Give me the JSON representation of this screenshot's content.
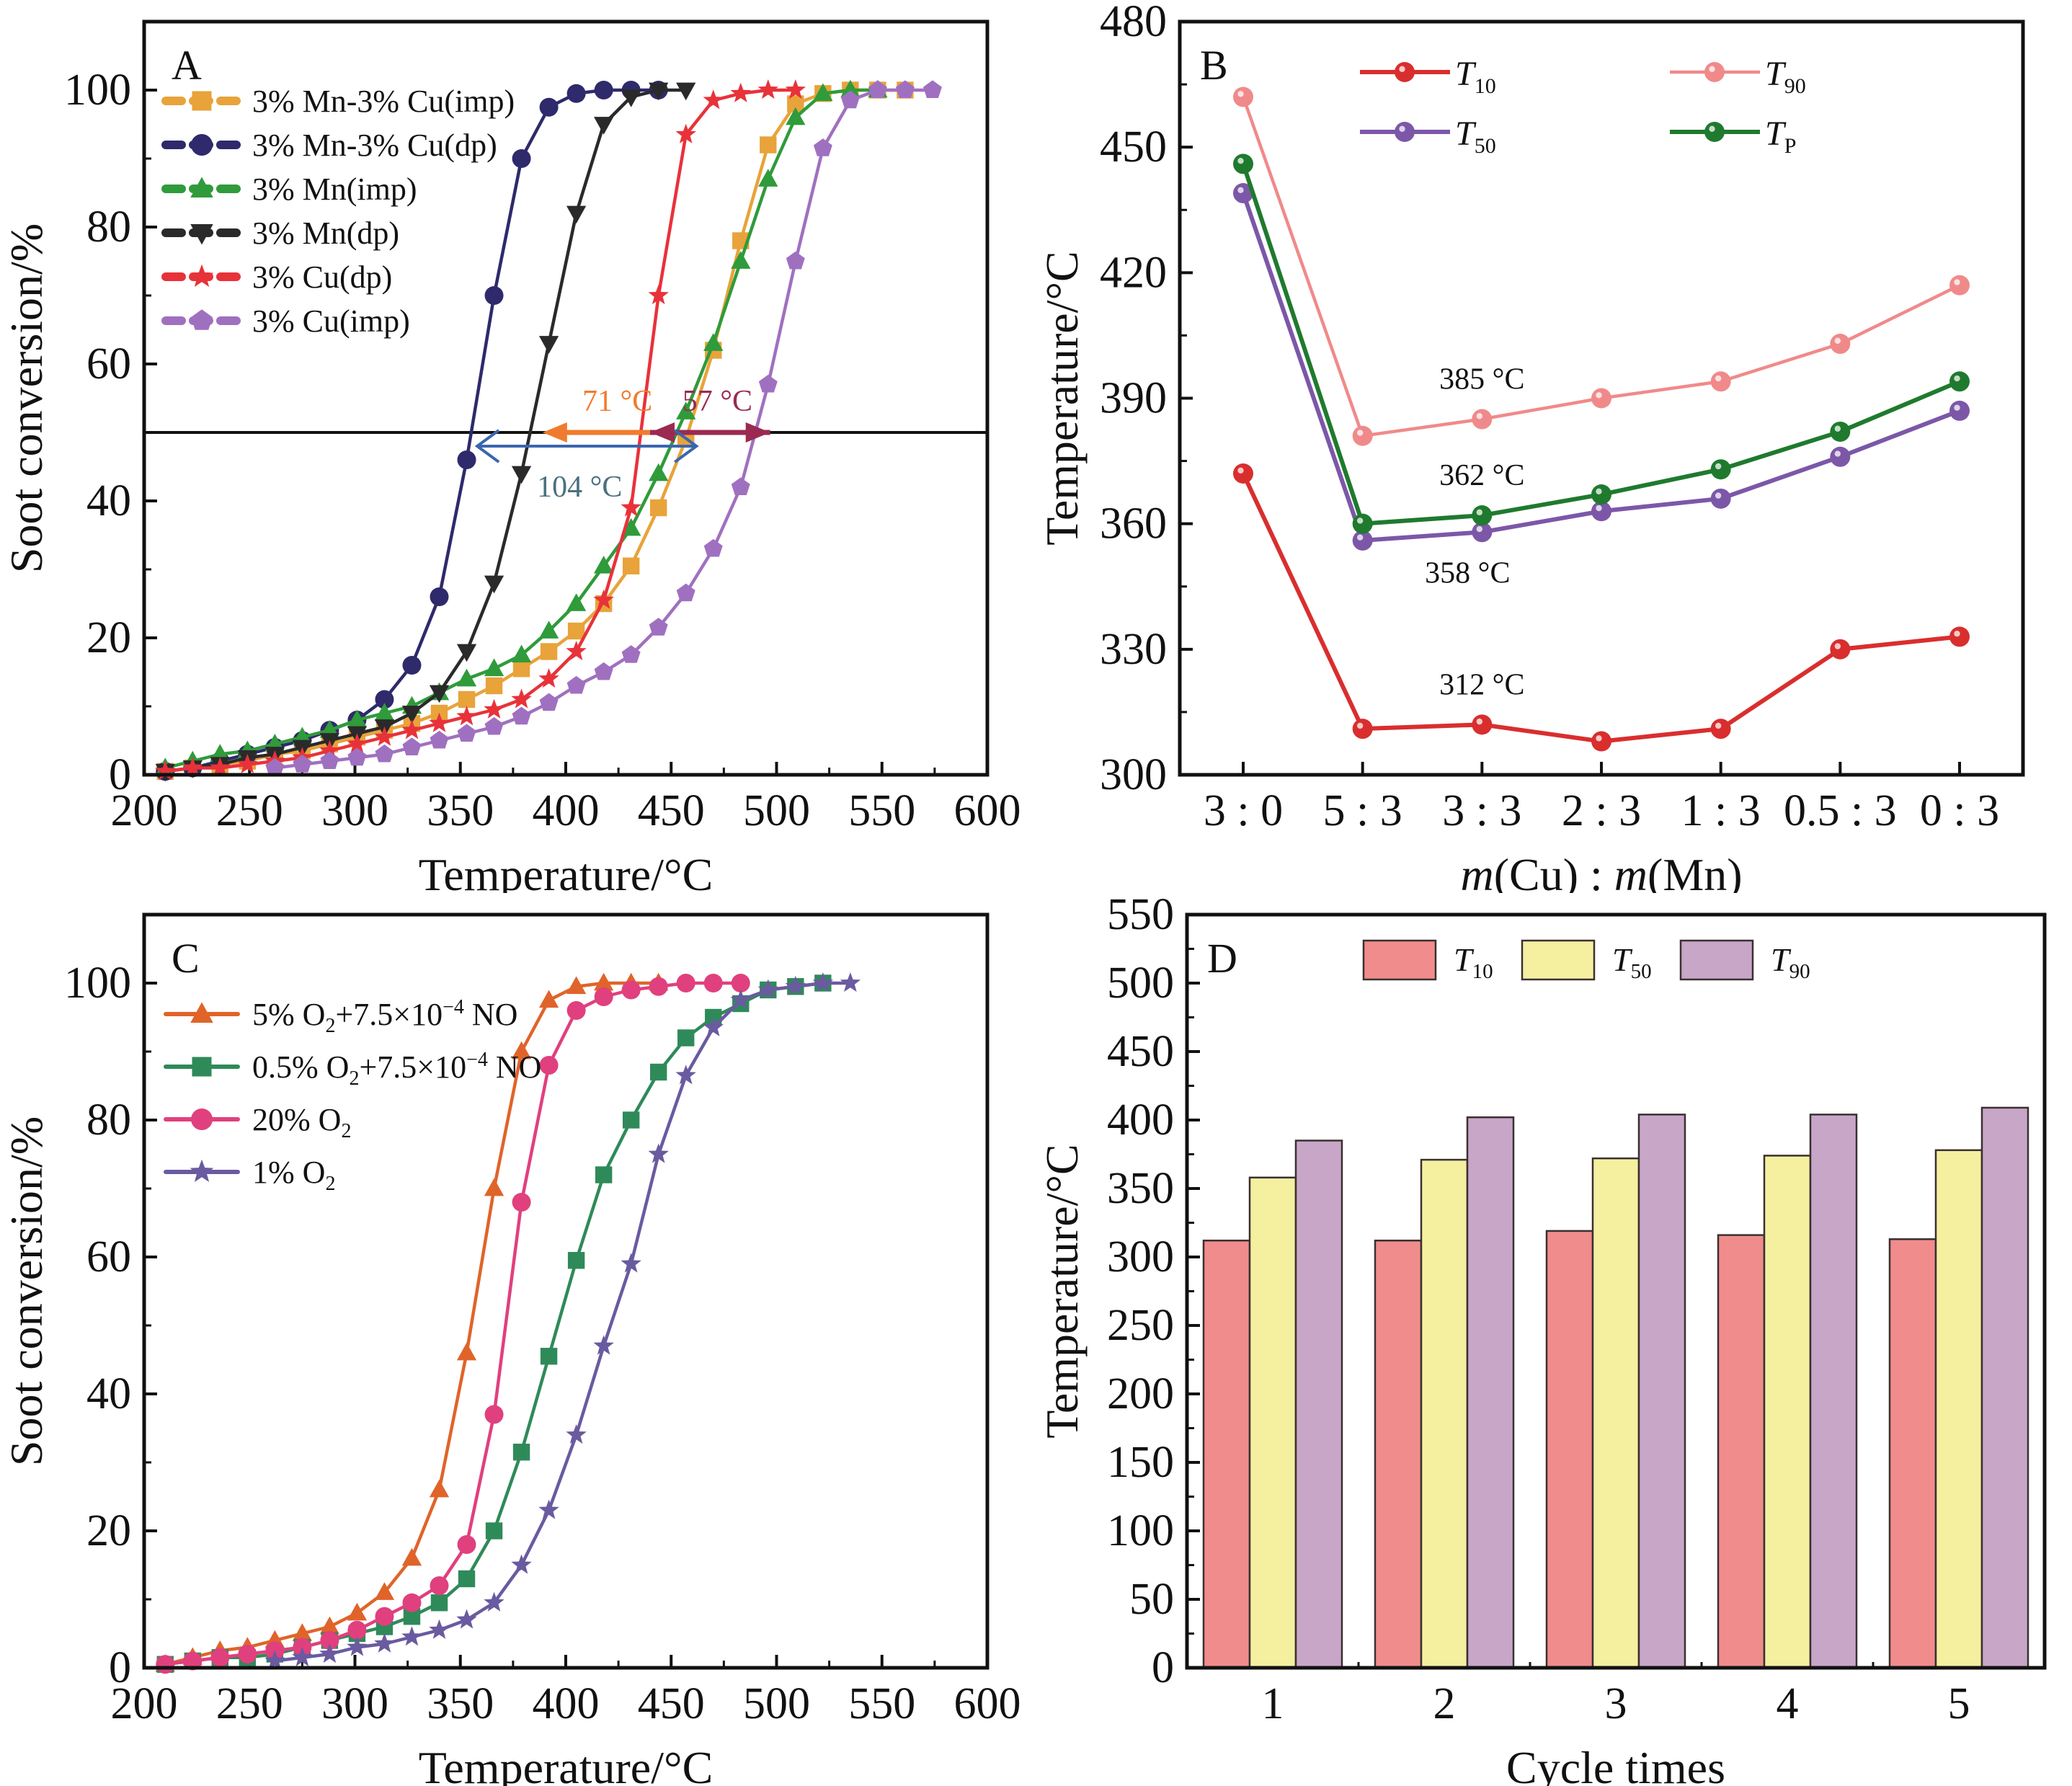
{
  "chart_data": [
    {
      "id": "A",
      "type": "line",
      "panel_label": "A",
      "xlabel": "Temperature/°C",
      "ylabel": "Soot conversion/%",
      "xlim": [
        200,
        600
      ],
      "ylim": [
        0,
        110
      ],
      "xticks": [
        200,
        250,
        300,
        350,
        400,
        450,
        500,
        550,
        600
      ],
      "yticks": [
        0,
        20,
        40,
        60,
        80,
        100
      ],
      "grid": false,
      "legend_position": "top-left",
      "reference_line_y": 50,
      "annotations": [
        {
          "text": "71 °C",
          "color": "#f07b2e",
          "from_x": 460,
          "to_x": 389,
          "y": 50
        },
        {
          "text": "57 °C",
          "color": "#9a2a52",
          "from_x": 440,
          "to_x": 497,
          "y": 50
        },
        {
          "text": "104 °C",
          "color": "#4a7080",
          "from_x": 462,
          "to_x": 358,
          "y": 48
        }
      ],
      "series": [
        {
          "name": "3% Mn-3% Cu(imp)",
          "color": "#e8a33a",
          "marker": "square",
          "x": [
            210,
            223,
            236,
            249,
            262,
            275,
            288,
            301,
            314,
            327,
            340,
            353,
            366,
            379,
            392,
            405,
            418,
            431,
            444,
            457,
            470,
            483,
            496,
            509,
            522,
            535,
            548,
            561
          ],
          "y": [
            0.5,
            1,
            1.5,
            2,
            3,
            3.5,
            4.5,
            5.5,
            6.5,
            7.5,
            9,
            11,
            13,
            15.5,
            18,
            21,
            25,
            30.5,
            39,
            49,
            62,
            78,
            92,
            98,
            99.5,
            100,
            100,
            100
          ]
        },
        {
          "name": "3% Mn-3% Cu(dp)",
          "color": "#2e2a6b",
          "marker": "circle",
          "x": [
            210,
            223,
            236,
            249,
            262,
            275,
            288,
            301,
            314,
            327,
            340,
            353,
            366,
            379,
            392,
            405,
            418,
            431,
            444
          ],
          "y": [
            0.5,
            1,
            2,
            3,
            4,
            5,
            6.5,
            8,
            11,
            16,
            26,
            46,
            70,
            90,
            97.5,
            99.5,
            100,
            100,
            100
          ]
        },
        {
          "name": "3% Mn(imp)",
          "color": "#2f9b3a",
          "marker": "triangle-up",
          "x": [
            210,
            223,
            236,
            249,
            262,
            275,
            288,
            301,
            314,
            327,
            340,
            353,
            366,
            379,
            392,
            405,
            418,
            431,
            444,
            457,
            470,
            483,
            496,
            509,
            522,
            535,
            548
          ],
          "y": [
            1,
            2,
            3,
            3.5,
            4.5,
            5.5,
            6.5,
            8,
            9,
            10,
            12,
            14,
            15.5,
            17.5,
            21,
            25,
            30.5,
            36,
            44,
            53,
            63,
            75,
            87,
            96,
            99.5,
            100,
            100
          ]
        },
        {
          "name": "3% Mn(dp)",
          "color": "#2a2a2a",
          "marker": "triangle-down",
          "x": [
            210,
            223,
            236,
            249,
            262,
            275,
            288,
            301,
            314,
            327,
            340,
            353,
            366,
            379,
            392,
            405,
            418,
            431,
            444,
            457
          ],
          "y": [
            0.5,
            1,
            1.5,
            2.5,
            3,
            4,
            5,
            6,
            7,
            9,
            12,
            18,
            28,
            44,
            63,
            82,
            95,
            99,
            100,
            100
          ]
        },
        {
          "name": "3% Cu(dp)",
          "color": "#e8323a",
          "marker": "star",
          "x": [
            210,
            223,
            236,
            249,
            262,
            275,
            288,
            301,
            314,
            327,
            340,
            353,
            366,
            379,
            392,
            405,
            418,
            431,
            444,
            457,
            470,
            483,
            496,
            509
          ],
          "y": [
            0.5,
            1,
            1,
            1.5,
            2,
            2.5,
            3.5,
            4.5,
            5.5,
            6.5,
            7.5,
            8.5,
            9.5,
            11,
            14,
            18,
            25.5,
            39,
            70,
            93.5,
            98.5,
            99.5,
            100,
            100
          ]
        },
        {
          "name": "3% Cu(imp)",
          "color": "#a070c0",
          "marker": "pentagon",
          "x": [
            262,
            275,
            288,
            301,
            314,
            327,
            340,
            353,
            366,
            379,
            392,
            405,
            418,
            431,
            444,
            457,
            470,
            483,
            496,
            509,
            522,
            535,
            548,
            561,
            574
          ],
          "y": [
            1,
            1.5,
            2,
            2.5,
            3,
            4,
            5,
            6,
            7,
            8.5,
            10.5,
            13,
            15,
            17.5,
            21.5,
            26.5,
            33,
            42,
            57,
            75,
            91.5,
            98.5,
            100,
            100,
            100
          ]
        }
      ]
    },
    {
      "id": "B",
      "type": "line",
      "panel_label": "B",
      "xlabel": "m(Cu) : m(Mn)",
      "xlabel_parts": {
        "m": "m",
        "cu": "(Cu)",
        "sep": " : ",
        "mn": "(Mn)"
      },
      "ylabel": "Temperature/°C",
      "categories": [
        "3 : 0",
        "5 : 3",
        "3 : 3",
        "2 : 3",
        "1 : 3",
        "0.5 : 3",
        "0 : 3"
      ],
      "ylim": [
        300,
        480
      ],
      "yticks": [
        300,
        330,
        360,
        390,
        420,
        450,
        480
      ],
      "grid": false,
      "legend_position": "top-center",
      "annotations": [
        {
          "text": "385 °C",
          "category_index": 2,
          "value": 385
        },
        {
          "text": "362 °C",
          "category_index": 2,
          "value": 362
        },
        {
          "text": "358 °C",
          "category_index": 2,
          "value": 358
        },
        {
          "text": "312 °C",
          "category_index": 2,
          "value": 312
        }
      ],
      "series": [
        {
          "name": "T10",
          "sym": "T",
          "sub": "10",
          "color": "#d92e2e",
          "values": [
            372,
            311,
            312,
            308,
            311,
            330,
            333
          ]
        },
        {
          "name": "T90",
          "sym": "T",
          "sub": "90",
          "color": "#f08a8a",
          "values": [
            462,
            381,
            385,
            390,
            394,
            403,
            417
          ]
        },
        {
          "name": "T50",
          "sym": "T",
          "sub": "50",
          "color": "#7c57a8",
          "values": [
            439,
            356,
            358,
            363,
            366,
            376,
            387
          ]
        },
        {
          "name": "TP",
          "sym": "T",
          "sub": "P",
          "color": "#1f7a2e",
          "values": [
            446,
            360,
            362,
            367,
            373,
            382,
            394
          ]
        }
      ]
    },
    {
      "id": "C",
      "type": "line",
      "panel_label": "C",
      "xlabel": "Temperature/°C",
      "ylabel": "Soot conversion/%",
      "xlim": [
        200,
        600
      ],
      "ylim": [
        0,
        110
      ],
      "xticks": [
        200,
        250,
        300,
        350,
        400,
        450,
        500,
        550,
        600
      ],
      "yticks": [
        0,
        20,
        40,
        60,
        80,
        100
      ],
      "grid": false,
      "legend_position": "top-left",
      "series": [
        {
          "name": "5% O2+7.5×10−4 NO",
          "label_parts": [
            "5% O",
            "2",
            "+7.5×10",
            "−4",
            " NO"
          ],
          "color": "#e0642a",
          "marker": "triangle-up",
          "x": [
            210,
            223,
            236,
            249,
            262,
            275,
            288,
            301,
            314,
            327,
            340,
            353,
            366,
            379,
            392,
            405,
            418,
            431,
            444
          ],
          "y": [
            0.5,
            1.5,
            2.5,
            3,
            4,
            5,
            6,
            8,
            11,
            16,
            26,
            46,
            70,
            90,
            97.5,
            99.5,
            100,
            100,
            100
          ]
        },
        {
          "name": "0.5% O2+7.5×10−4 NO",
          "label_parts": [
            "0.5% O",
            "2",
            "+7.5×10",
            "−4",
            " NO"
          ],
          "color": "#2f8a5a",
          "marker": "square",
          "x": [
            210,
            223,
            236,
            249,
            262,
            275,
            288,
            301,
            314,
            327,
            340,
            353,
            366,
            379,
            392,
            405,
            418,
            431,
            444,
            457,
            470,
            483,
            496,
            509,
            522
          ],
          "y": [
            0.5,
            1,
            1.5,
            1.5,
            2,
            3,
            4,
            5,
            6,
            7.5,
            9.5,
            13,
            20,
            31.5,
            45.5,
            59.5,
            72,
            80,
            87,
            92,
            95,
            97,
            99,
            99.5,
            100
          ]
        },
        {
          "name": "20% O2",
          "label_parts": [
            "20% O",
            "2",
            "",
            "",
            ""
          ],
          "color": "#e0407e",
          "marker": "circle",
          "x": [
            210,
            223,
            236,
            249,
            262,
            275,
            288,
            301,
            314,
            327,
            340,
            353,
            366,
            379,
            392,
            405,
            418,
            431,
            444,
            457,
            470,
            483
          ],
          "y": [
            0.5,
            1,
            1.5,
            2,
            2.5,
            3,
            4,
            5.5,
            7.5,
            9.5,
            12,
            18,
            37,
            68,
            88,
            96,
            98,
            99,
            99.5,
            100,
            100,
            100
          ]
        },
        {
          "name": "1% O2",
          "label_parts": [
            "1% O",
            "2",
            "",
            "",
            ""
          ],
          "color": "#6a5aa0",
          "marker": "star",
          "x": [
            262,
            275,
            288,
            301,
            314,
            327,
            340,
            353,
            366,
            379,
            392,
            405,
            418,
            431,
            444,
            457,
            470,
            483,
            496,
            509,
            522,
            535
          ],
          "y": [
            1,
            1.5,
            2,
            3,
            3.5,
            4.5,
            5.5,
            7,
            9.5,
            15,
            23,
            34,
            47,
            59,
            75,
            86.5,
            93.5,
            97.5,
            99,
            99.5,
            100,
            100
          ]
        }
      ]
    },
    {
      "id": "D",
      "type": "bar",
      "panel_label": "D",
      "xlabel": "Cycle times",
      "ylabel": "Temperature/°C",
      "categories": [
        "1",
        "2",
        "3",
        "4",
        "5"
      ],
      "ylim": [
        0,
        550
      ],
      "yticks": [
        0,
        50,
        100,
        150,
        200,
        250,
        300,
        350,
        400,
        450,
        500,
        550
      ],
      "grid": false,
      "legend_position": "top-center",
      "series": [
        {
          "name": "T10",
          "sym": "T",
          "sub": "10",
          "color": "#f08c8c",
          "values": [
            312,
            312,
            319,
            316,
            313
          ]
        },
        {
          "name": "T50",
          "sym": "T",
          "sub": "50",
          "color": "#f5f0a0",
          "values": [
            358,
            371,
            372,
            374,
            378
          ]
        },
        {
          "name": "T90",
          "sym": "T",
          "sub": "90",
          "color": "#c8a6c8",
          "values": [
            385,
            402,
            404,
            404,
            409
          ]
        }
      ]
    }
  ]
}
